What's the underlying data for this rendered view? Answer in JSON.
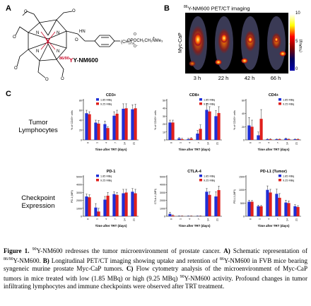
{
  "panels": {
    "a": "A",
    "b": "B",
    "c": "C"
  },
  "panel_a": {
    "compound_label_prefix": "86/90",
    "compound_label_suffix": "Y-NM600",
    "atom_y": "Y",
    "atom_hn": "HN",
    "atom_o": "O",
    "atom_n": "N",
    "chain_subscript": "18",
    "chain_text": "OPOCH₂CH₂NMe₃",
    "oxygen_minus": "O⁻",
    "plus": "+"
  },
  "panel_b": {
    "title_prefix": "86",
    "title_suffix": "Y-NM600 PET/CT imaging",
    "row_label": "Myc-CaP",
    "timepoints": [
      "3 h",
      "22 h",
      "42 h",
      "66 h"
    ],
    "colorbar_max": "10",
    "colorbar_mid": "5",
    "colorbar_min": "0",
    "colorbar_unit": "(%IA/g)",
    "colors": {
      "hot_1": "#ffff00",
      "hot_2": "#ff0000",
      "cold": "#0000aa"
    }
  },
  "panel_c": {
    "row_labels": [
      "Tumor\nLymphocytes",
      "Checkpoint\nExpression"
    ],
    "legend": [
      "1.85 MBq",
      "9.25 MBq"
    ],
    "series_colors": [
      "#1f2fd6",
      "#e0201c"
    ],
    "xlabel": "Time after TRT (days)"
  },
  "chart_data": [
    {
      "type": "bar",
      "title": "CD3+",
      "ylabel": "% of CD45+ cells",
      "ylim": [
        0,
        80
      ],
      "yticks": [
        "0",
        "20",
        "40",
        "60",
        "80"
      ],
      "categories": [
        "0",
        "1",
        "4",
        "7",
        "14",
        "21"
      ],
      "series": [
        {
          "name": "1.85 MBq",
          "values": [
            54,
            35,
            32,
            49,
            63,
            62
          ]
        },
        {
          "name": "9.25 MBq",
          "values": [
            52,
            33,
            24,
            53,
            64,
            64
          ]
        }
      ],
      "errors": [
        [
          6,
          5,
          6,
          8,
          10,
          9
        ],
        [
          5,
          6,
          3,
          7,
          9,
          8
        ]
      ]
    },
    {
      "type": "bar",
      "title": "CD8+",
      "ylabel": "% of CD45+ cells",
      "ylim": [
        0,
        50
      ],
      "yticks": [
        "0",
        "10",
        "20",
        "30",
        "40",
        "50"
      ],
      "categories": [
        "0",
        "1",
        "4",
        "7",
        "14",
        "21"
      ],
      "series": [
        {
          "name": "1.85 MBq",
          "values": [
            22,
            2,
            1,
            8,
            38,
            30
          ]
        },
        {
          "name": "9.25 MBq",
          "values": [
            22,
            1,
            2,
            14,
            36,
            34
          ]
        }
      ],
      "errors": [
        [
          3,
          1,
          1,
          4,
          8,
          7
        ],
        [
          3,
          1,
          1,
          5,
          6,
          8
        ]
      ]
    },
    {
      "type": "bar",
      "title": "CD4+",
      "ylabel": "% of CD45+ cells",
      "ylim": [
        0,
        60
      ],
      "yticks": [
        "0",
        "20",
        "40",
        "60"
      ],
      "categories": [
        "0",
        "1",
        "4",
        "7",
        "14",
        "21"
      ],
      "series": [
        {
          "name": "1.85 MBq",
          "values": [
            22,
            7,
            1,
            1,
            2,
            1
          ]
        },
        {
          "name": "9.25 MBq",
          "values": [
            20,
            32,
            1,
            1,
            1,
            1
          ]
        }
      ],
      "errors": [
        [
          12,
          5,
          1,
          0.5,
          1,
          0.5
        ],
        [
          10,
          14,
          1,
          0.5,
          0.5,
          0.5
        ]
      ]
    },
    {
      "type": "bar",
      "title": "PD-1",
      "ylabel": "PD-1 (MFI)",
      "ylim": [
        0,
        5000
      ],
      "yticks": [
        "0",
        "1000",
        "2000",
        "3000",
        "4000",
        "5000"
      ],
      "categories": [
        "0",
        "1",
        "4",
        "7",
        "14",
        "21"
      ],
      "series": [
        {
          "name": "1.85 MBq",
          "values": [
            2500,
            1100,
            2100,
            2800,
            2900,
            3100
          ]
        },
        {
          "name": "9.25 MBq",
          "values": [
            2400,
            600,
            2600,
            2700,
            3000,
            2900
          ]
        }
      ],
      "errors": [
        [
          300,
          500,
          400,
          300,
          500,
          400
        ],
        [
          300,
          400,
          400,
          300,
          400,
          500
        ]
      ]
    },
    {
      "type": "bar",
      "title": "CTLA-4",
      "ylabel": "CTLA-4 (MFI)",
      "ylim": [
        0,
        5000
      ],
      "yticks": [
        "0",
        "1000",
        "2000",
        "3000",
        "4000",
        "5000"
      ],
      "categories": [
        "0",
        "1",
        "4",
        "7",
        "14",
        "21"
      ],
      "series": [
        {
          "name": "1.85 MBq",
          "values": [
            300,
            30,
            30,
            30,
            3100,
            2500
          ]
        },
        {
          "name": "9.25 MBq",
          "values": [
            100,
            30,
            30,
            30,
            2700,
            3300
          ]
        }
      ],
      "errors": [
        [
          200,
          20,
          20,
          20,
          400,
          600
        ],
        [
          80,
          20,
          20,
          20,
          400,
          500
        ]
      ]
    },
    {
      "type": "bar",
      "title": "PD-L1 (Tumor)",
      "ylabel": "PD-L1 (MFI)",
      "ylim": [
        0,
        1500
      ],
      "yticks": [
        "0",
        "500",
        "1000",
        "1500"
      ],
      "categories": [
        "0",
        "1",
        "4",
        "7",
        "14",
        "21"
      ],
      "series": [
        {
          "name": "1.85 MBq",
          "values": [
            550,
            380,
            1000,
            850,
            520,
            380
          ]
        },
        {
          "name": "9.25 MBq",
          "values": [
            550,
            380,
            900,
            700,
            500,
            350
          ]
        }
      ],
      "errors": [
        [
          60,
          40,
          150,
          180,
          90,
          60
        ],
        [
          50,
          30,
          120,
          160,
          80,
          50
        ]
      ]
    }
  ],
  "caption": {
    "lead": "Figure 1.",
    "lead_sup": "90",
    "text1": "Y-NM600 redresses the tumor microenvironment of prostate cancer. ",
    "a_label": "A)",
    "text2": " Schematic representation of ",
    "sup2": "86/90",
    "text3": "Y-NM600. ",
    "b_label": "B)",
    "text4": " Longitudinal PET/CT imaging showing uptake and retention of ",
    "sup3": "86",
    "text5": "Y-NM600 in FVB mice bearing syngeneic murine prostate Myc-CaP tumors. ",
    "c_label": "C)",
    "text6": " Flow cytometry analysis of the microenvironment of Myc-CaP tumors in mice treated with low (1.85 MBq) or high (9.25 MBq) ",
    "sup4": "90",
    "text7": "Y-NM600 activity. Profound changes in tumor infiltrating lymphocytes and immune checkpoints were observed after TRT treatment."
  }
}
